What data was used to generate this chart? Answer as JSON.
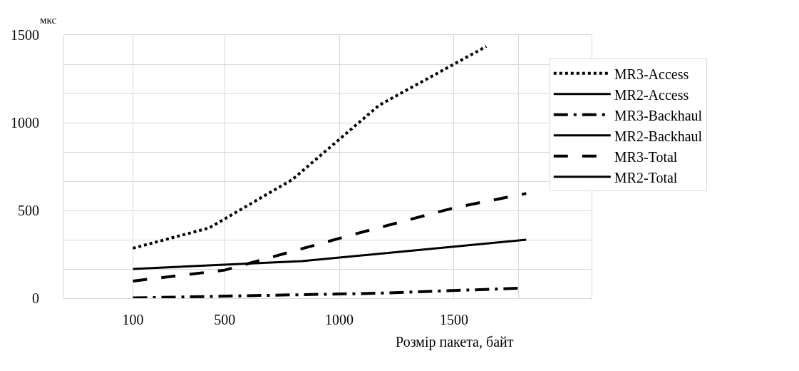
{
  "chart_data": {
    "type": "line",
    "xlabel": "Розмір пакета, байт",
    "ylabel": "мкс",
    "xlim": [
      -200,
      2100
    ],
    "xticks": [
      100,
      500,
      1000,
      1500,
      {
        "value": 1780,
        "label": null
      }
    ],
    "ylim": [
      0,
      1500
    ],
    "yticks": [
      0,
      {
        "value": 166.67,
        "label": null
      },
      {
        "value": 333.33,
        "label": null
      },
      500,
      {
        "value": 666.67,
        "label": null
      },
      {
        "value": 833.33,
        "label": null
      },
      1000,
      {
        "value": 1166.67,
        "label": null
      },
      {
        "value": 1333.33,
        "label": null
      },
      1500
    ],
    "grid": true,
    "legend": "right",
    "series": [
      {
        "name": "MR3-Access",
        "color": "#000000",
        "line_style": "dotted",
        "x": [
          100,
          431,
          794,
          1174,
          1641
        ],
        "values": [
          285,
          400,
          675,
          1100,
          1435
        ]
      },
      {
        "name": "MR2-Access",
        "color": "#000000",
        "line_style": "solid",
        "x": [
          100,
          837,
          1815
        ],
        "values": [
          167,
          211,
          333
        ]
      },
      {
        "name": "MR3-Backhaul",
        "color": "#000000",
        "line_style": "dashdot",
        "x": [
          100,
          1156,
          1782
        ],
        "values": [
          2,
          28,
          57
        ]
      },
      {
        "name": "MR2-Backhaul",
        "color": "#000000",
        "line_style": "solid"
      },
      {
        "name": "MR3-Total",
        "color": "#000000",
        "line_style": "dashed",
        "x": [
          100,
          500,
          1069,
          1500,
          1815
        ],
        "values": [
          98,
          160,
          366,
          515,
          597
        ]
      },
      {
        "name": "MR2-Total",
        "color": "#000000",
        "line_style": "solid"
      }
    ]
  }
}
